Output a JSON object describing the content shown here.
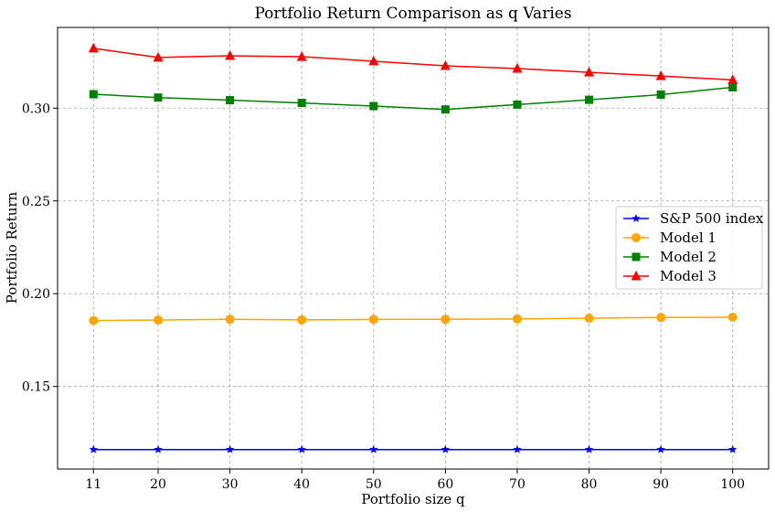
{
  "chart_data": {
    "type": "line",
    "title": "Portfolio Return Comparison as q Varies",
    "xlabel": "Portfolio size q",
    "ylabel": "Portfolio Return",
    "x": [
      11,
      20,
      30,
      40,
      50,
      60,
      70,
      80,
      90,
      100
    ],
    "x_tick_labels": [
      "11",
      "20",
      "30",
      "40",
      "50",
      "60",
      "70",
      "80",
      "90",
      "100"
    ],
    "y_ticks": [
      0.15,
      0.2,
      0.25,
      0.3
    ],
    "y_tick_labels": [
      "0.15",
      "0.20",
      "0.25",
      "0.30"
    ],
    "xlim": [
      6,
      105
    ],
    "ylim": [
      0.1055,
      0.3435
    ],
    "grid": true,
    "legend_position": "center-right",
    "series": [
      {
        "name": "S&P 500 index",
        "color": "#0000ff",
        "marker": "star",
        "values": [
          0.116,
          0.116,
          0.116,
          0.116,
          0.116,
          0.116,
          0.116,
          0.116,
          0.116,
          0.116
        ]
      },
      {
        "name": "Model 1",
        "color": "#ffa500",
        "marker": "circle",
        "values": [
          0.1855,
          0.1858,
          0.1862,
          0.1859,
          0.1861,
          0.1862,
          0.1864,
          0.1868,
          0.1872,
          0.1873
        ]
      },
      {
        "name": "Model 2",
        "color": "#008000",
        "marker": "square",
        "values": [
          0.3075,
          0.3057,
          0.3043,
          0.3028,
          0.3011,
          0.2993,
          0.3019,
          0.3045,
          0.3073,
          0.3112
        ]
      },
      {
        "name": "Model 3",
        "color": "#ff0000",
        "marker": "triangle",
        "values": [
          0.3322,
          0.3273,
          0.3282,
          0.3277,
          0.3253,
          0.3228,
          0.3213,
          0.3193,
          0.3173,
          0.3152
        ]
      }
    ]
  }
}
